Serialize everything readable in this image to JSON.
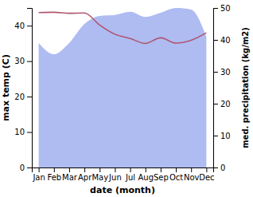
{
  "chart_data": {
    "type": "line",
    "categories": [
      "Jan",
      "Feb",
      "Mar",
      "Apr",
      "May",
      "Jun",
      "Jul",
      "Aug",
      "Sep",
      "Oct",
      "Nov",
      "Dec"
    ],
    "x_label": "date (month)",
    "y_label": "max temp (C)",
    "y2_label": "med. precipitation (kg/m2)",
    "ylim": [
      0,
      45
    ],
    "yticks": [
      0,
      10,
      20,
      30,
      40
    ],
    "y2lim": [
      0,
      50
    ],
    "y2ticks": [
      0,
      10,
      20,
      30,
      40,
      50
    ],
    "series": [
      {
        "name": "max temp",
        "type": "line",
        "axis": "y",
        "color": "#b0566e",
        "values": [
          43.7,
          43.8,
          43.5,
          43.6,
          40.2,
          37.6,
          36.4,
          35.0,
          36.6,
          35.1,
          35.9,
          38.0
        ]
      },
      {
        "name": "med. precipitation",
        "type": "area",
        "axis": "y2",
        "color": "#aebcf2",
        "values": [
          39,
          35.5,
          39,
          45,
          47.5,
          47.8,
          48.8,
          47.2,
          48.5,
          50,
          49.5,
          41
        ]
      }
    ]
  }
}
